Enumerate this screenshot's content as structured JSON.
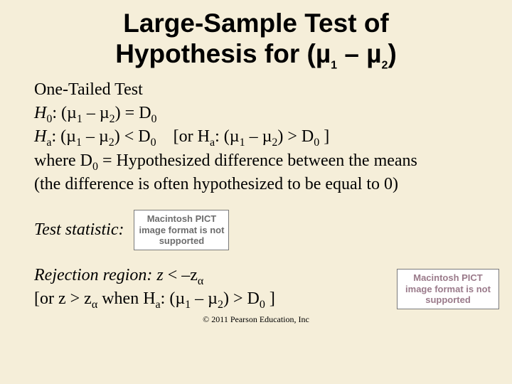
{
  "title_line1": "Large-Sample Test of",
  "title_line2": "Hypothesis for (µ",
  "title_sub1": "1",
  "title_mid": " – µ",
  "title_sub2": "2",
  "title_end": ")",
  "one_tailed": "One-Tailed Test",
  "h0_pre": "H",
  "h0_sub": "0",
  "h0_mid1": ": (µ",
  "mu1": "1",
  "h0_mid2": " – µ",
  "mu2": "2",
  "h0_mid3": ") = D",
  "d0": "0",
  "ha_pre": "H",
  "ha_sub": "a",
  "ha_mid1": ": (µ",
  "ha_mid2": ") < D",
  "ha_or_pre": "    [or H",
  "ha_or_mid1": ": (µ",
  "ha_or_mid2": ") > D",
  "ha_or_end": " ]",
  "where1": "where D",
  "where2": " = Hypothesized difference between the means",
  "where3": "(the difference is often hypothesized to be equal to 0)",
  "teststat": "Test statistic:",
  "rej1_pre": "Rejection region: z",
  "rej1_mid": " < –z",
  "alpha": "α",
  "rej2_pre": "[or z > z",
  "rej2_mid": " when H",
  "rej2_mid2": ": (µ",
  "rej2_mid3": ") > D",
  "rej2_end": " ]",
  "pict": "Macintosh PICT image format is not supported",
  "copyright": "© 2011 Pearson Education, Inc"
}
